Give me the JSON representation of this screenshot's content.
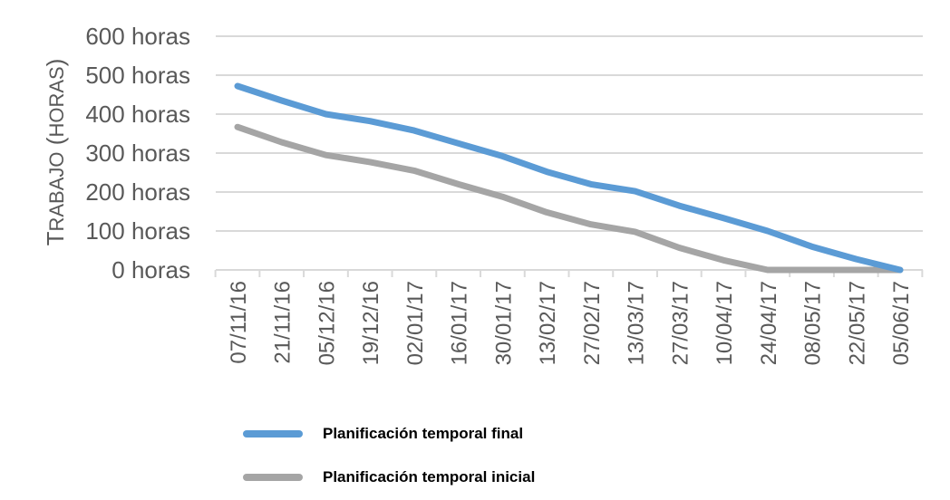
{
  "chart_data": {
    "type": "line",
    "ylabel": "Trabajo (horas)",
    "ylim": [
      0,
      600
    ],
    "y_ticks": [
      "0 horas",
      "100 horas",
      "200 horas",
      "300 horas",
      "400 horas",
      "500 horas",
      "600 horas"
    ],
    "categories": [
      "07/11/16",
      "21/11/16",
      "05/12/16",
      "19/12/16",
      "02/01/17",
      "16/01/17",
      "30/01/17",
      "13/02/17",
      "27/02/17",
      "13/03/17",
      "27/03/17",
      "10/04/17",
      "24/04/17",
      "08/05/17",
      "22/05/17",
      "05/06/17"
    ],
    "grid": true,
    "legend_position": "bottom-left",
    "series": [
      {
        "name": "Planificación temporal final",
        "color": "#5b9bd5",
        "values": [
          472,
          435,
          400,
          382,
          358,
          325,
          292,
          252,
          220,
          202,
          165,
          133,
          100,
          60,
          28,
          0
        ]
      },
      {
        "name": "Planificación temporal inicial",
        "color": "#a5a5a5",
        "values": [
          367,
          328,
          295,
          277,
          255,
          220,
          188,
          148,
          117,
          98,
          57,
          25,
          0,
          0,
          0,
          0
        ]
      }
    ]
  }
}
